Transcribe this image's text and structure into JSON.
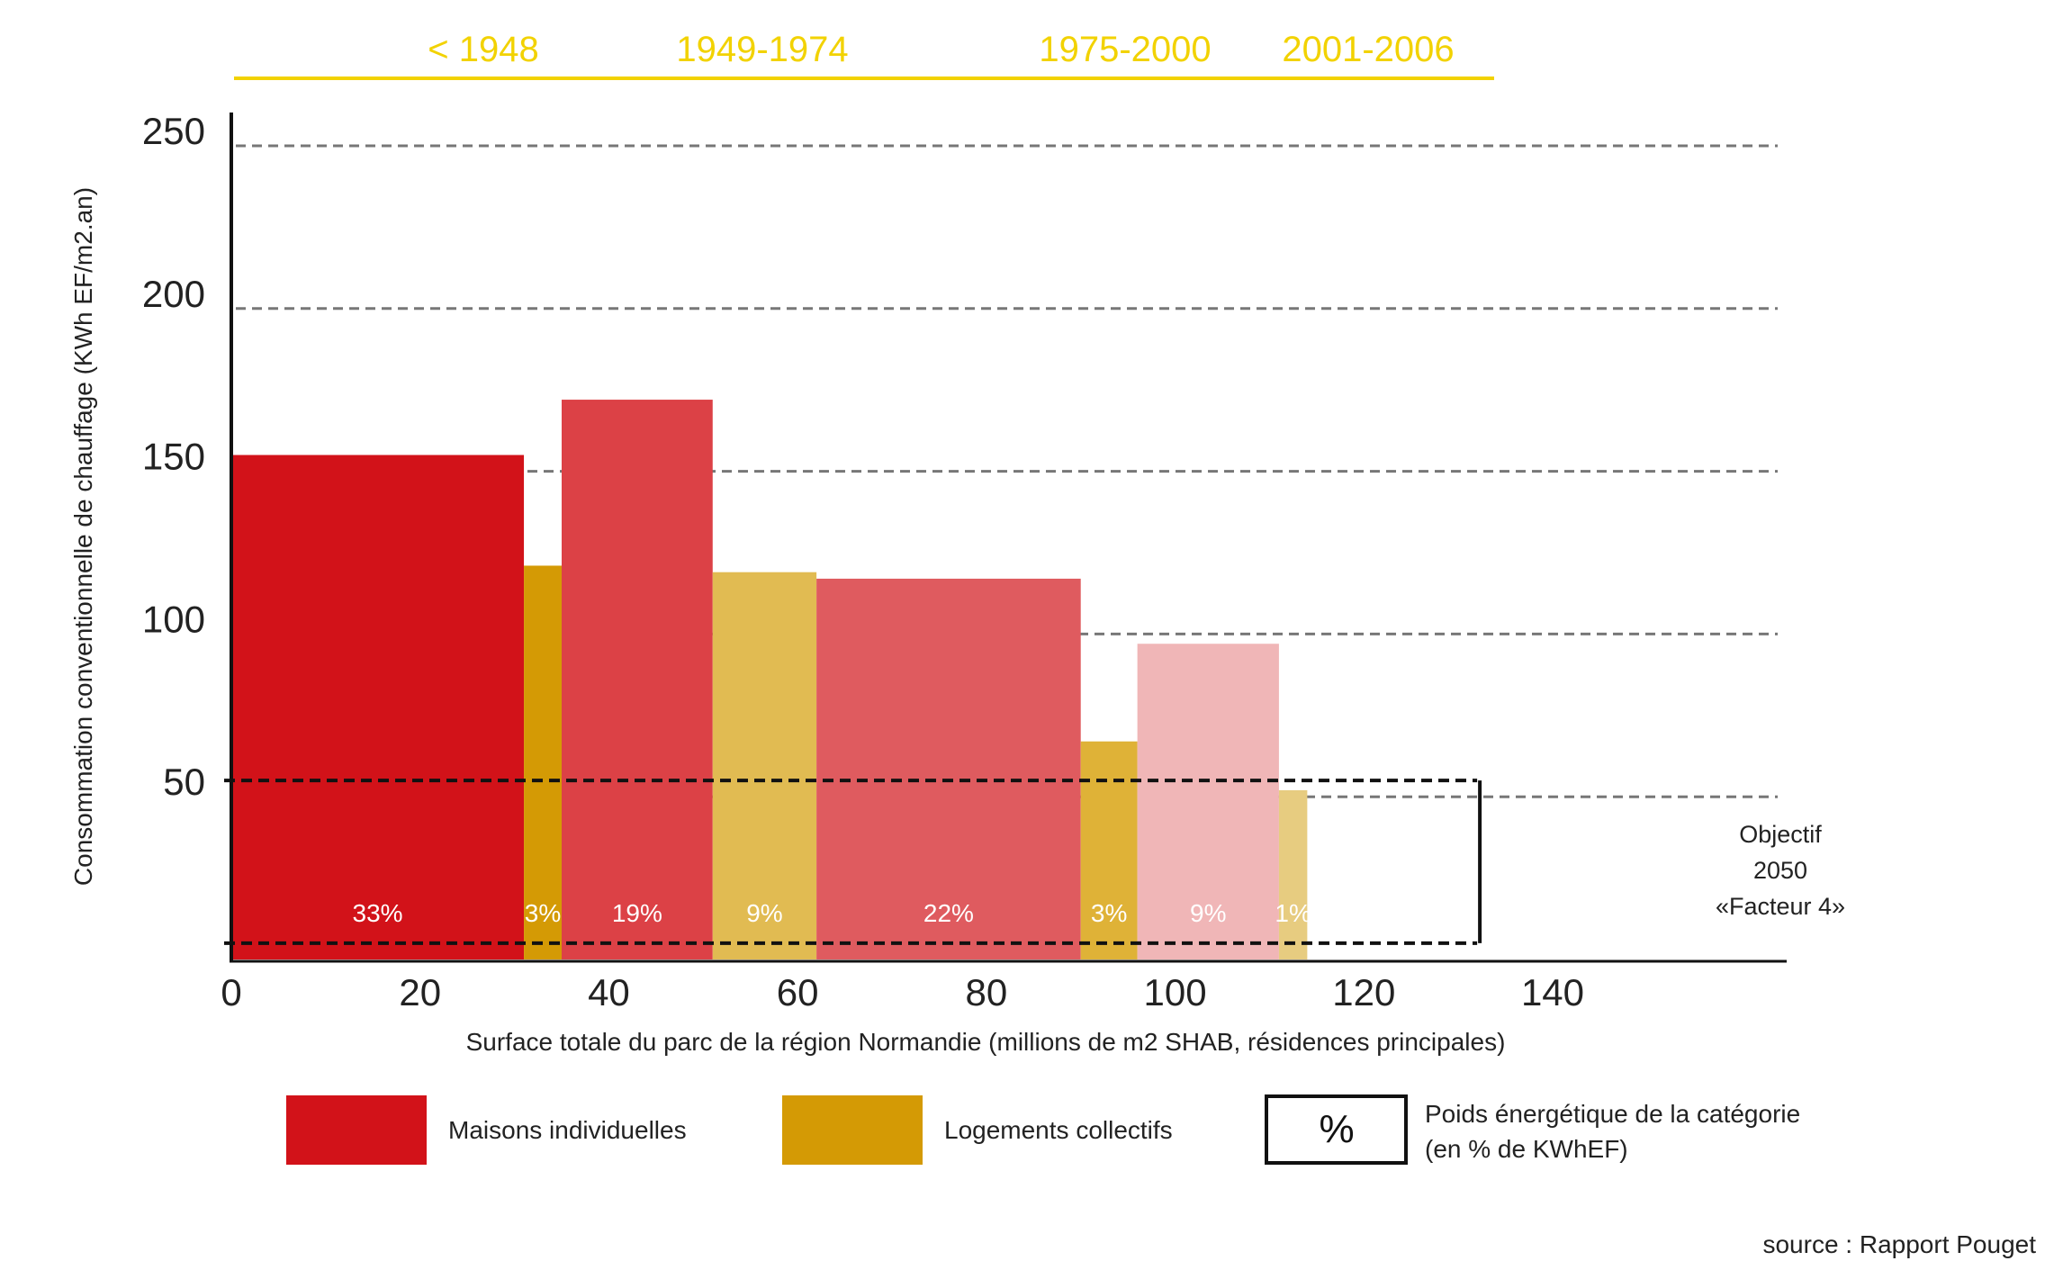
{
  "chart_data": {
    "type": "bar",
    "subtype": "variable-width-histogram",
    "xlabel": "Surface totale du parc de la région Normandie (millions de m2 SHAB, résidences principales)",
    "ylabel": "Consommation conventionnelle de chauffage  (KWh EF/m2.an)",
    "xlim": [
      0,
      140
    ],
    "ylim": [
      0,
      250
    ],
    "x_ticks": [
      "0",
      "20",
      "40",
      "60",
      "80",
      "100",
      "120",
      "140"
    ],
    "y_ticks": [
      "50",
      "100",
      "150",
      "200",
      "250"
    ],
    "periods": [
      {
        "label": "< 1948",
        "x_start": 0,
        "x_end": 35
      },
      {
        "label": "1949-1974",
        "x_start": 35,
        "x_end": 62
      },
      {
        "label": "1975-2000",
        "x_start": 62,
        "x_end": 96
      },
      {
        "label": "2001-2006",
        "x_start": 96,
        "x_end": 114
      }
    ],
    "bars": [
      {
        "period": "< 1948",
        "category": "Maisons individuelles",
        "x_start": 0,
        "x_end": 31,
        "value": 155,
        "pct": "33%",
        "color": "#d21219"
      },
      {
        "period": "< 1948",
        "category": "Logements collectifs",
        "x_start": 31,
        "x_end": 35,
        "value": 121,
        "pct": "3%",
        "color": "#d49a05"
      },
      {
        "period": "1949-1974",
        "category": "Maisons individuelles",
        "x_start": 35,
        "x_end": 51,
        "value": 172,
        "pct": "19%",
        "color": "#dc4146"
      },
      {
        "period": "1949-1974",
        "category": "Logements collectifs",
        "x_start": 51,
        "x_end": 62,
        "value": 119,
        "pct": "9%",
        "color": "#e1bb52"
      },
      {
        "period": "1975-2000",
        "category": "Maisons individuelles",
        "x_start": 62,
        "x_end": 90,
        "value": 117,
        "pct": "22%",
        "color": "#df5b5f"
      },
      {
        "period": "1975-2000",
        "category": "Logements collectifs",
        "x_start": 90,
        "x_end": 96,
        "value": 67,
        "pct": "3%",
        "color": "#dfb237"
      },
      {
        "period": "2001-2006",
        "category": "Maisons individuelles",
        "x_start": 96,
        "x_end": 111,
        "value": 97,
        "pct": "9%",
        "color": "#f0b6b7"
      },
      {
        "period": "2001-2006",
        "category": "Logements collectifs",
        "x_start": 111,
        "x_end": 114,
        "value": 52,
        "pct": "1%",
        "color": "#e7cc80"
      }
    ],
    "gridlines": [
      250,
      200,
      150,
      100,
      50
    ],
    "grid": "dashed",
    "objective": {
      "range": [
        5,
        55
      ],
      "lines": [
        "Objectif",
        "2050",
        "«Facteur 4»"
      ]
    },
    "legend": [
      {
        "label": "Maisons individuelles",
        "color": "#d21219"
      },
      {
        "label": "Logements collectifs",
        "color": "#d49a05"
      },
      {
        "symbol": "%",
        "label_lines": [
          "Poids énergétique de la catégorie",
          "(en % de KWhEF)"
        ]
      }
    ],
    "source": "source : Rapport Pouget"
  },
  "colors": {
    "period_label": "#f2d200",
    "grid": "#777777",
    "axis": "#111111"
  }
}
